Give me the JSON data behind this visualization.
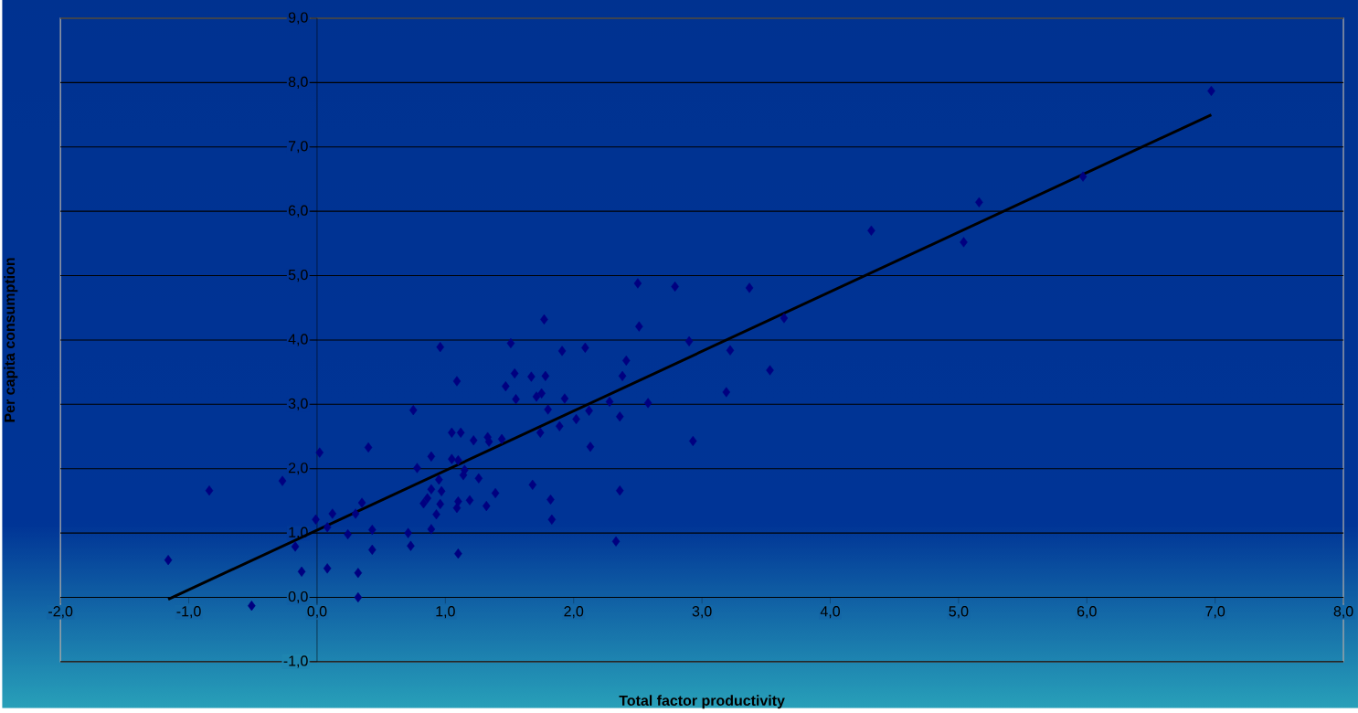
{
  "chart_data": {
    "type": "scatter",
    "xlabel": "Total factor productivity",
    "ylabel": "Per capita consumption",
    "xlim": [
      -2,
      8
    ],
    "ylim": [
      -1,
      9
    ],
    "xticks": [
      {
        "value": -2,
        "label": "-2,0"
      },
      {
        "value": -1,
        "label": "-1,0"
      },
      {
        "value": 0,
        "label": "0,0"
      },
      {
        "value": 1,
        "label": "1,0"
      },
      {
        "value": 2,
        "label": "2,0"
      },
      {
        "value": 3,
        "label": "3,0"
      },
      {
        "value": 4,
        "label": "4,0"
      },
      {
        "value": 5,
        "label": "5,0"
      },
      {
        "value": 6,
        "label": "6,0"
      },
      {
        "value": 7,
        "label": "7,0"
      },
      {
        "value": 8,
        "label": "8,0"
      }
    ],
    "yticks": [
      {
        "value": -1,
        "label": "-1,0"
      },
      {
        "value": 0,
        "label": "0,0"
      },
      {
        "value": 1,
        "label": "1,0"
      },
      {
        "value": 2,
        "label": "2,0"
      },
      {
        "value": 3,
        "label": "3,0"
      },
      {
        "value": 4,
        "label": "4,0"
      },
      {
        "value": 5,
        "label": "5,0"
      },
      {
        "value": 6,
        "label": "6,0"
      },
      {
        "value": 7,
        "label": "7,0"
      },
      {
        "value": 8,
        "label": "8,0"
      },
      {
        "value": 9,
        "label": "9,0"
      }
    ],
    "grid": "y",
    "series": [
      {
        "color": "#000080",
        "marker": "diamond",
        "x": [
          -1.16,
          -0.84,
          -0.51,
          -0.27,
          -0.17,
          -0.12,
          0.02,
          -0.01,
          0.08,
          0.08,
          0.12,
          0.24,
          0.3,
          0.35,
          0.4,
          0.43,
          0.43,
          0.32,
          0.32,
          0.71,
          0.73,
          0.75,
          0.78,
          0.83,
          0.86,
          0.89,
          0.89,
          0.89,
          0.93,
          0.95,
          0.96,
          0.96,
          0.97,
          1.05,
          1.05,
          1.09,
          1.1,
          1.09,
          1.1,
          1.12,
          1.1,
          1.14,
          1.15,
          1.19,
          1.22,
          1.26,
          1.32,
          1.33,
          1.34,
          1.39,
          1.44,
          1.47,
          1.51,
          1.54,
          1.55,
          1.67,
          1.68,
          1.71,
          1.74,
          1.75,
          1.77,
          1.78,
          1.8,
          1.82,
          1.83,
          1.89,
          1.91,
          1.93,
          2.02,
          2.09,
          2.12,
          2.13,
          2.28,
          2.33,
          2.36,
          2.36,
          2.38,
          2.41,
          2.5,
          2.51,
          2.58,
          2.79,
          2.9,
          2.93,
          3.19,
          3.22,
          3.37,
          3.53,
          3.64,
          4.32,
          5.04,
          5.16,
          5.97,
          6.97
        ],
        "values": [
          0.58,
          1.66,
          -0.13,
          1.81,
          0.79,
          0.4,
          2.25,
          1.21,
          1.09,
          0.45,
          1.3,
          0.98,
          1.3,
          1.47,
          2.33,
          1.05,
          0.74,
          0.38,
          0.0,
          1.0,
          0.8,
          2.91,
          2.01,
          1.46,
          1.54,
          2.19,
          1.06,
          1.68,
          1.29,
          1.83,
          3.89,
          1.45,
          1.65,
          2.56,
          2.15,
          3.36,
          2.13,
          1.39,
          1.49,
          2.56,
          0.68,
          1.9,
          1.98,
          1.51,
          2.44,
          1.85,
          1.42,
          2.49,
          2.42,
          1.62,
          2.46,
          3.28,
          3.95,
          3.48,
          3.08,
          3.43,
          1.75,
          3.12,
          2.56,
          3.17,
          4.32,
          3.44,
          2.92,
          1.52,
          1.21,
          2.66,
          3.83,
          3.09,
          2.77,
          3.88,
          2.9,
          2.34,
          3.04,
          0.87,
          2.81,
          1.66,
          3.44,
          3.68,
          4.88,
          4.21,
          3.02,
          4.83,
          3.98,
          2.43,
          3.19,
          3.84,
          4.81,
          3.53,
          4.34,
          5.7,
          5.52,
          6.14,
          6.54,
          7.87
        ]
      },
      {
        "type": "line",
        "color": "#000000",
        "line_style": "solid",
        "marker": "none",
        "x": [
          -1.16,
          6.97
        ],
        "values": [
          -0.03,
          7.5
        ]
      }
    ]
  }
}
